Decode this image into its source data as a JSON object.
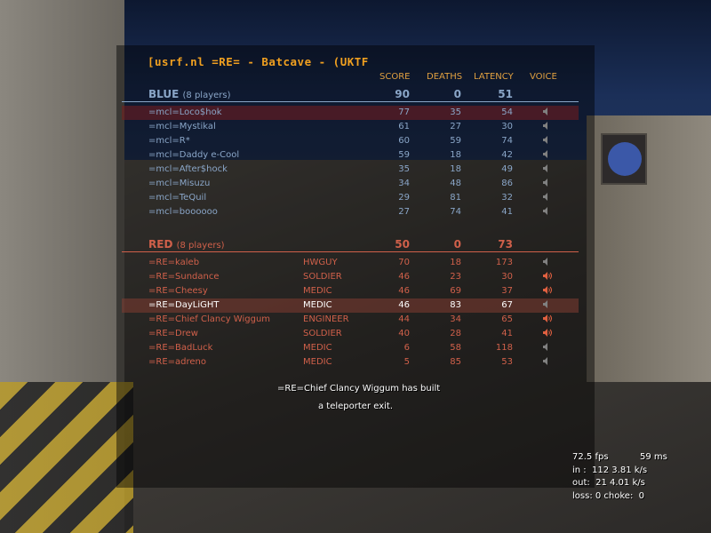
{
  "server_title": "[usrf.nl =RE= - Batcave  - (UKTF",
  "columns": {
    "score": "SCORE",
    "deaths": "DEATHS",
    "latency": "LATENCY",
    "voice": "VOICE"
  },
  "colors": {
    "blue": "#8aa6c8",
    "red": "#d0604a",
    "title": "#f0a020",
    "header": "#e0a040"
  },
  "blue": {
    "name": "BLUE",
    "count": "(8 players)",
    "score": "90",
    "deaths": "0",
    "latency": "51",
    "players": [
      {
        "name": "=mcl=Loco$hok",
        "score": "77",
        "deaths": "35",
        "latency": "54",
        "voice": "speaker-muted-icon",
        "highlight": true
      },
      {
        "name": "=mcl=Mystikal",
        "score": "61",
        "deaths": "27",
        "latency": "30",
        "voice": "speaker-muted-icon"
      },
      {
        "name": "=mcl=R*",
        "score": "60",
        "deaths": "59",
        "latency": "74",
        "voice": "speaker-muted-icon"
      },
      {
        "name": "=mcl=Daddy e-Cool",
        "score": "59",
        "deaths": "18",
        "latency": "42",
        "voice": "speaker-muted-icon"
      },
      {
        "name": "=mcl=After$hock",
        "score": "35",
        "deaths": "18",
        "latency": "49",
        "voice": "speaker-muted-icon"
      },
      {
        "name": "=mcl=Misuzu",
        "score": "34",
        "deaths": "48",
        "latency": "86",
        "voice": "speaker-muted-icon"
      },
      {
        "name": "=mcl=TeQuil",
        "score": "29",
        "deaths": "81",
        "latency": "32",
        "voice": "speaker-muted-icon"
      },
      {
        "name": "=mcl=boooooo",
        "score": "27",
        "deaths": "74",
        "latency": "41",
        "voice": "speaker-muted-icon"
      }
    ]
  },
  "red": {
    "name": "RED",
    "count": "(8 players)",
    "score": "50",
    "deaths": "0",
    "latency": "73",
    "players": [
      {
        "name": "=RE=kaleb",
        "class": "HWGUY",
        "score": "70",
        "deaths": "18",
        "latency": "173",
        "voice": "speaker-muted-icon"
      },
      {
        "name": "=RE=Sundance",
        "class": "SOLDIER",
        "score": "46",
        "deaths": "23",
        "latency": "30",
        "voice": "speaker-talking-icon"
      },
      {
        "name": "=RE=Cheesy",
        "class": "MEDIC",
        "score": "46",
        "deaths": "69",
        "latency": "37",
        "voice": "speaker-talking-icon"
      },
      {
        "name": "=RE=DayLiGHT",
        "class": "MEDIC",
        "score": "46",
        "deaths": "83",
        "latency": "67",
        "voice": "speaker-muted-icon",
        "highlight": true
      },
      {
        "name": "=RE=Chief Clancy Wiggum",
        "class": "ENGINEER",
        "score": "44",
        "deaths": "34",
        "latency": "65",
        "voice": "speaker-talking-icon"
      },
      {
        "name": "=RE=Drew",
        "class": "SOLDIER",
        "score": "40",
        "deaths": "28",
        "latency": "41",
        "voice": "speaker-talking-icon"
      },
      {
        "name": "=RE=BadLuck",
        "class": "MEDIC",
        "score": "6",
        "deaths": "58",
        "latency": "118",
        "voice": "speaker-muted-icon"
      },
      {
        "name": "=RE=adreno",
        "class": "MEDIC",
        "score": "5",
        "deaths": "85",
        "latency": "53",
        "voice": "speaker-muted-icon"
      }
    ]
  },
  "message": {
    "line1": "=RE=Chief Clancy Wiggum has built",
    "line2": "a teleporter exit."
  },
  "netgraph": {
    "fps": "72.5 fps",
    "ms": "59 ms",
    "in": "in :  112 3.81 k/s",
    "out": "out:  21 4.01 k/s",
    "loss": "loss: 0 choke:  0"
  }
}
